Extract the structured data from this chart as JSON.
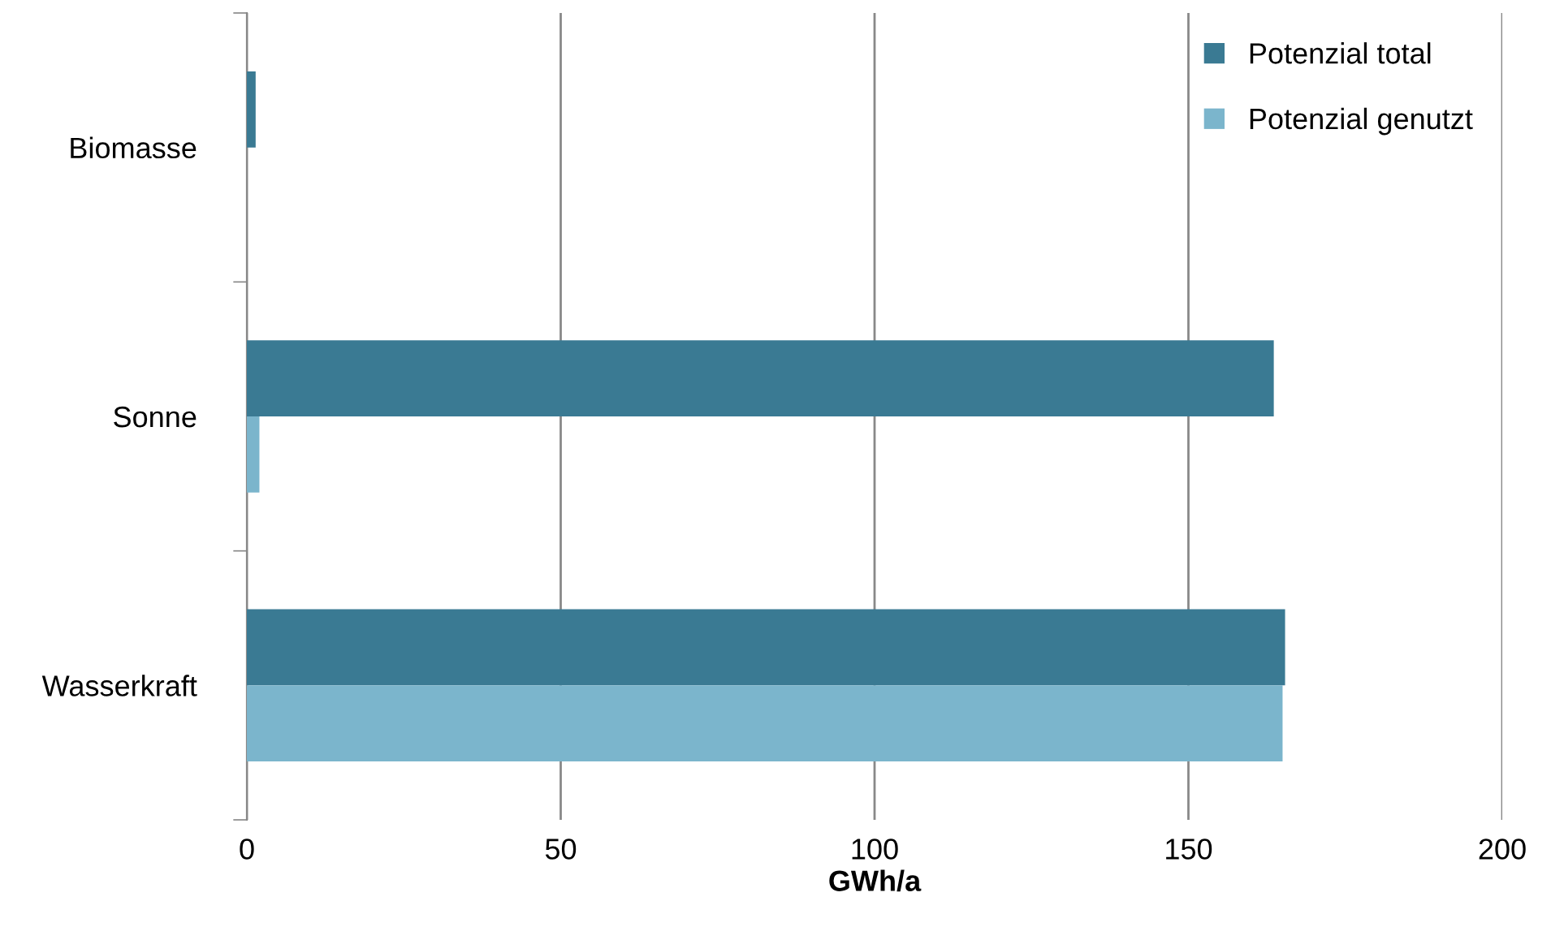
{
  "chart_data": {
    "type": "bar",
    "orientation": "horizontal",
    "categories": [
      "Biomasse",
      "Sonne",
      "Wasserkraft"
    ],
    "series": [
      {
        "name": "Potenzial total",
        "color": "#3a7a93",
        "values": [
          1.4,
          163.6,
          165.4
        ]
      },
      {
        "name": "Potenzial genutzt",
        "color": "#7bb5cc",
        "values": [
          0,
          2.0,
          165.0
        ]
      }
    ],
    "xlabel": "GWh/a",
    "xlim": [
      0,
      200
    ],
    "xticks": [
      0,
      50,
      100,
      150,
      200
    ],
    "grid": "x",
    "legend": "top right"
  }
}
